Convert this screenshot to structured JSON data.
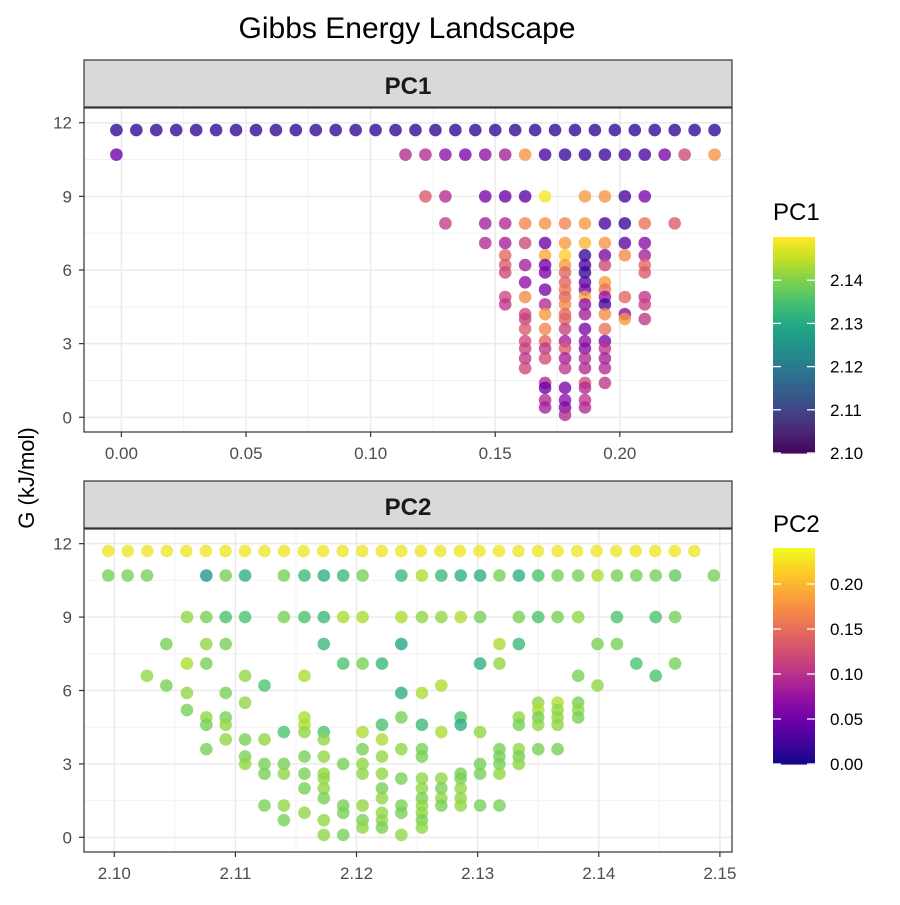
{
  "title": "Gibbs Energy Landscape",
  "ylabel": "G (kJ/mol)",
  "chart_data": [
    {
      "type": "scatter",
      "panel_label": "PC1",
      "xlim": [
        -0.015,
        0.245
      ],
      "ylim": [
        -0.6,
        12.6
      ],
      "x_ticks": [
        0.0,
        0.05,
        0.1,
        0.15,
        0.2
      ],
      "x_tick_labels": [
        "0.00",
        "0.05",
        "0.10",
        "0.15",
        "0.20"
      ],
      "y_ticks": [
        0,
        3,
        6,
        9,
        12
      ],
      "y_tick_labels": [
        "0",
        "3",
        "6",
        "9",
        "12"
      ],
      "grid": true,
      "color_scale": "plasma",
      "colorbar": {
        "title": "PC1",
        "range": [
          2.1,
          2.15
        ],
        "ticks": [
          2.1,
          2.11,
          2.12,
          2.13,
          2.14
        ],
        "tick_labels": [
          "2.10",
          "2.11",
          "2.12",
          "2.13",
          "2.14"
        ]
      },
      "rows": [
        {
          "y": 11.7,
          "x_start": -0.002,
          "x_end": 0.238,
          "step": 0.008,
          "c": 2.103
        },
        {
          "y": 10.7,
          "x": [
            -0.002,
            0.114,
            0.122,
            0.13,
            0.138,
            0.146,
            0.154,
            0.162,
            0.17,
            0.178,
            0.186,
            0.194,
            0.202,
            0.21,
            0.218,
            0.226,
            0.238
          ],
          "c": [
            2.11,
            2.12,
            2.12,
            2.115,
            2.112,
            2.115,
            2.118,
            2.137,
            2.106,
            2.104,
            2.104,
            2.104,
            2.106,
            2.106,
            2.112,
            2.125,
            2.137
          ]
        },
        {
          "y": 9.0,
          "x": [
            0.122,
            0.13,
            0.146,
            0.154,
            0.162,
            0.17,
            0.186,
            0.194,
            0.202,
            0.21
          ],
          "c": [
            2.128,
            2.12,
            2.112,
            2.11,
            2.108,
            2.148,
            2.138,
            2.137,
            2.106,
            2.112
          ]
        },
        {
          "y": 7.9,
          "x": [
            0.13,
            0.146,
            0.154,
            0.162,
            0.17,
            0.178,
            0.186,
            0.194,
            0.202,
            0.21,
            0.222
          ],
          "c": [
            2.123,
            2.118,
            2.12,
            2.135,
            2.137,
            2.135,
            2.138,
            2.106,
            2.104,
            2.132,
            2.128
          ]
        },
        {
          "y": 7.1,
          "x": [
            0.146,
            0.154,
            0.162,
            0.17,
            0.178,
            0.186,
            0.194,
            0.202,
            0.21
          ],
          "c": [
            2.12,
            2.118,
            2.125,
            2.11,
            2.138,
            2.142,
            2.137,
            2.108,
            2.114
          ]
        },
        {
          "y": 6.6,
          "x": [
            0.154,
            0.17,
            0.178,
            0.186,
            0.194,
            0.202,
            0.21
          ],
          "c": [
            2.13,
            2.14,
            2.145,
            2.104,
            2.112,
            2.136,
            2.118
          ]
        },
        {
          "y": 6.2,
          "x": [
            0.154,
            0.162,
            0.17,
            0.178,
            0.186,
            0.194,
            0.21
          ],
          "c": [
            2.128,
            2.118,
            2.11,
            2.138,
            2.106,
            2.125,
            2.13
          ]
        },
        {
          "y": 5.9,
          "x": [
            0.154,
            0.17,
            0.178,
            0.186,
            0.21
          ],
          "c": [
            2.125,
            2.112,
            2.13,
            2.104,
            2.128
          ]
        },
        {
          "y": 5.5,
          "x": [
            0.162,
            0.178,
            0.186,
            0.194
          ],
          "c": [
            2.115,
            2.13,
            2.108,
            2.138
          ]
        },
        {
          "y": 5.2,
          "x": [
            0.17,
            0.178,
            0.186,
            0.194
          ],
          "c": [
            2.112,
            2.133,
            2.112,
            2.132
          ]
        },
        {
          "y": 4.9,
          "x": [
            0.154,
            0.162,
            0.178,
            0.186,
            0.194,
            0.202,
            0.21
          ],
          "c": [
            2.125,
            2.136,
            2.13,
            2.14,
            2.116,
            2.13,
            2.122
          ]
        },
        {
          "y": 4.6,
          "x": [
            0.154,
            0.17,
            0.178,
            0.186,
            0.194,
            0.21
          ],
          "c": [
            2.122,
            2.12,
            2.135,
            2.115,
            2.105,
            2.124
          ]
        },
        {
          "y": 4.2,
          "x": [
            0.162,
            0.17,
            0.178,
            0.186,
            0.194,
            0.202
          ],
          "c": [
            2.125,
            2.138,
            2.13,
            2.118,
            2.136,
            2.114
          ]
        },
        {
          "y": 4.0,
          "x": [
            0.162,
            0.178,
            0.202,
            0.21
          ],
          "c": [
            2.124,
            2.13,
            2.138,
            2.122
          ]
        },
        {
          "y": 3.6,
          "x": [
            0.162,
            0.17,
            0.178,
            0.186,
            0.194
          ],
          "c": [
            2.128,
            2.135,
            2.124,
            2.112,
            2.132
          ]
        },
        {
          "y": 3.1,
          "x": [
            0.162,
            0.17,
            0.178,
            0.186,
            0.194
          ],
          "c": [
            2.125,
            2.13,
            2.118,
            2.115,
            2.112
          ]
        },
        {
          "y": 2.8,
          "x": [
            0.162,
            0.17,
            0.178,
            0.186,
            0.194
          ],
          "c": [
            2.124,
            2.122,
            2.128,
            2.114,
            2.122
          ]
        },
        {
          "y": 2.4,
          "x": [
            0.162,
            0.17,
            0.178,
            0.186,
            0.194
          ],
          "c": [
            2.122,
            2.126,
            2.118,
            2.12,
            2.118
          ]
        },
        {
          "y": 2.0,
          "x": [
            0.162,
            0.178,
            0.186,
            0.194
          ],
          "c": [
            2.125,
            2.122,
            2.12,
            2.12
          ]
        },
        {
          "y": 1.4,
          "x": [
            0.17,
            0.186,
            0.194
          ],
          "c": [
            2.12,
            2.126,
            2.122
          ]
        },
        {
          "y": 1.2,
          "x": [
            0.17,
            0.178,
            0.186
          ],
          "c": [
            2.11,
            2.112,
            2.12
          ]
        },
        {
          "y": 0.7,
          "x": [
            0.17,
            0.178,
            0.186
          ],
          "c": [
            2.12,
            2.115,
            2.122
          ]
        },
        {
          "y": 0.4,
          "x": [
            0.17,
            0.178,
            0.186
          ],
          "c": [
            2.118,
            2.112,
            2.12
          ]
        },
        {
          "y": 0.1,
          "x": [
            0.178
          ],
          "c": [
            2.12
          ]
        }
      ]
    },
    {
      "type": "scatter",
      "panel_label": "PC2",
      "xlim": [
        2.0975,
        2.151
      ],
      "ylim": [
        -0.6,
        12.6
      ],
      "x_ticks": [
        2.1,
        2.11,
        2.12,
        2.13,
        2.14,
        2.15
      ],
      "x_tick_labels": [
        "2.10",
        "2.11",
        "2.12",
        "2.13",
        "2.14",
        "2.15"
      ],
      "y_ticks": [
        0,
        3,
        6,
        9,
        12
      ],
      "y_tick_labels": [
        "0",
        "3",
        "6",
        "9",
        "12"
      ],
      "grid": true,
      "color_scale": "viridis",
      "colorbar": {
        "title": "PC2",
        "range": [
          0.0,
          0.24
        ],
        "ticks": [
          0.0,
          0.05,
          0.1,
          0.15,
          0.2
        ],
        "tick_labels": [
          "0.00",
          "0.05",
          "0.10",
          "0.15",
          "0.20"
        ]
      },
      "rows": [
        {
          "y": 11.7,
          "x_start": 2.0995,
          "x_end": 2.1495,
          "step": 0.001613,
          "c": 0.235
        },
        {
          "y": 10.7,
          "x": [
            2.0995,
            2.1011,
            2.1027,
            2.1076,
            2.1092,
            2.1108,
            2.114,
            2.1157,
            2.1173,
            2.1189,
            2.1205,
            2.1237,
            2.1254,
            2.127,
            2.1286,
            2.1302,
            2.1318,
            2.1334,
            2.135,
            2.1366,
            2.1383,
            2.1399,
            2.1415,
            2.1431,
            2.1447,
            2.1463,
            2.1495
          ],
          "c": [
            0.19,
            0.19,
            0.19,
            0.12,
            0.19,
            0.15,
            0.19,
            0.16,
            0.15,
            0.16,
            0.19,
            0.16,
            0.21,
            0.16,
            0.15,
            0.15,
            0.19,
            0.15,
            0.17,
            0.19,
            0.19,
            0.21,
            0.19,
            0.19,
            0.19,
            0.18,
            0.19
          ]
        },
        {
          "y": 9.0,
          "x": [
            2.106,
            2.1076,
            2.1092,
            2.1108,
            2.114,
            2.1157,
            2.1173,
            2.1189,
            2.1205,
            2.1237,
            2.1254,
            2.127,
            2.1286,
            2.1302,
            2.1334,
            2.135,
            2.1366,
            2.1383,
            2.1415,
            2.1447,
            2.1463
          ],
          "c": [
            0.2,
            0.19,
            0.17,
            0.17,
            0.19,
            0.17,
            0.16,
            0.21,
            0.21,
            0.21,
            0.2,
            0.2,
            0.21,
            0.19,
            0.19,
            0.17,
            0.19,
            0.2,
            0.17,
            0.17,
            0.19
          ]
        },
        {
          "y": 7.9,
          "x": [
            2.1043,
            2.1076,
            2.1092,
            2.1173,
            2.1237,
            2.1318,
            2.1334,
            2.1399,
            2.1415
          ],
          "c": [
            0.19,
            0.2,
            0.19,
            0.16,
            0.14,
            0.21,
            0.16,
            0.19,
            0.19
          ]
        },
        {
          "y": 7.1,
          "x": [
            2.106,
            2.1076,
            2.1189,
            2.1205,
            2.1221,
            2.1302,
            2.1318,
            2.1431,
            2.1463
          ],
          "c": [
            0.21,
            0.19,
            0.17,
            0.19,
            0.16,
            0.15,
            0.2,
            0.17,
            0.19
          ]
        },
        {
          "y": 6.6,
          "x": [
            2.1027,
            2.1108,
            2.1157,
            2.1383,
            2.1447
          ],
          "c": [
            0.2,
            0.2,
            0.21,
            0.19,
            0.17
          ]
        },
        {
          "y": 6.2,
          "x": [
            2.1043,
            2.1124,
            2.127,
            2.1399
          ],
          "c": [
            0.19,
            0.17,
            0.21,
            0.2
          ]
        },
        {
          "y": 5.9,
          "x": [
            2.106,
            2.1092,
            2.1237,
            2.1254
          ],
          "c": [
            0.2,
            0.19,
            0.15,
            0.21
          ]
        },
        {
          "y": 5.5,
          "x": [
            2.1108,
            2.135,
            2.1366,
            2.1383
          ],
          "c": [
            0.2,
            0.2,
            0.21,
            0.19
          ]
        },
        {
          "y": 5.2,
          "x": [
            2.106,
            2.135,
            2.1366,
            2.1383
          ],
          "c": [
            0.19,
            0.21,
            0.2,
            0.2
          ]
        },
        {
          "y": 4.9,
          "x": [
            2.1076,
            2.1092,
            2.1157,
            2.1237,
            2.1286,
            2.1334,
            2.135,
            2.1366,
            2.1383
          ],
          "c": [
            0.2,
            0.19,
            0.21,
            0.19,
            0.17,
            0.2,
            0.19,
            0.2,
            0.19
          ]
        },
        {
          "y": 4.6,
          "x": [
            2.1076,
            2.1092,
            2.1157,
            2.1221,
            2.1254,
            2.1286,
            2.1334,
            2.135,
            2.1366
          ],
          "c": [
            0.19,
            0.2,
            0.21,
            0.17,
            0.16,
            0.15,
            0.19,
            0.2,
            0.2
          ]
        },
        {
          "y": 4.3,
          "x": [
            2.114,
            2.1157,
            2.1173,
            2.1205,
            2.127,
            2.1302
          ],
          "c": [
            0.17,
            0.2,
            0.17,
            0.21,
            0.21,
            0.2
          ]
        },
        {
          "y": 4.0,
          "x": [
            2.1092,
            2.1108,
            2.1124,
            2.1173,
            2.1221
          ],
          "c": [
            0.2,
            0.19,
            0.2,
            0.2,
            0.21
          ]
        },
        {
          "y": 3.6,
          "x": [
            2.1076,
            2.1205,
            2.1237,
            2.1254,
            2.1318,
            2.1334,
            2.135,
            2.1366
          ],
          "c": [
            0.19,
            0.19,
            0.2,
            0.19,
            0.19,
            0.2,
            0.19,
            0.19
          ]
        },
        {
          "y": 3.3,
          "x": [
            2.1108,
            2.1157,
            2.1173,
            2.1221,
            2.1254,
            2.1318,
            2.1334
          ],
          "c": [
            0.19,
            0.19,
            0.2,
            0.2,
            0.19,
            0.19,
            0.19
          ]
        },
        {
          "y": 3.0,
          "x": [
            2.1108,
            2.1124,
            2.114,
            2.1189,
            2.1205,
            2.1302,
            2.1318,
            2.1334
          ],
          "c": [
            0.2,
            0.19,
            0.19,
            0.19,
            0.2,
            0.19,
            0.19,
            0.2
          ]
        },
        {
          "y": 2.6,
          "x": [
            2.1124,
            2.114,
            2.1157,
            2.1173,
            2.1205,
            2.1221,
            2.1286,
            2.1302,
            2.1318
          ],
          "c": [
            0.19,
            0.2,
            0.19,
            0.2,
            0.2,
            0.2,
            0.19,
            0.19,
            0.2
          ]
        },
        {
          "y": 2.4,
          "x": [
            2.1173,
            2.1237,
            2.1254,
            2.127,
            2.1286
          ],
          "c": [
            0.2,
            0.19,
            0.2,
            0.2,
            0.19
          ]
        },
        {
          "y": 2.0,
          "x": [
            2.1157,
            2.1173,
            2.1221,
            2.1254,
            2.127,
            2.1286
          ],
          "c": [
            0.19,
            0.2,
            0.19,
            0.2,
            0.19,
            0.2
          ]
        },
        {
          "y": 1.6,
          "x": [
            2.1173,
            2.1221,
            2.1254,
            2.127,
            2.1286
          ],
          "c": [
            0.19,
            0.2,
            0.19,
            0.2,
            0.2
          ]
        },
        {
          "y": 1.3,
          "x": [
            2.1124,
            2.114,
            2.1189,
            2.1205,
            2.1237,
            2.1254,
            2.127,
            2.1286,
            2.1302,
            2.1318
          ],
          "c": [
            0.19,
            0.2,
            0.19,
            0.2,
            0.19,
            0.2,
            0.19,
            0.2,
            0.19,
            0.19
          ]
        },
        {
          "y": 1.0,
          "x": [
            2.1157,
            2.1189,
            2.1221,
            2.1237,
            2.1254
          ],
          "c": [
            0.2,
            0.19,
            0.2,
            0.19,
            0.2
          ]
        },
        {
          "y": 0.7,
          "x": [
            2.114,
            2.1173,
            2.1205,
            2.1221,
            2.1254
          ],
          "c": [
            0.19,
            0.2,
            0.19,
            0.2,
            0.19
          ]
        },
        {
          "y": 0.4,
          "x": [
            2.1205,
            2.1221,
            2.1254
          ],
          "c": [
            0.2,
            0.19,
            0.2
          ]
        },
        {
          "y": 0.1,
          "x": [
            2.1173,
            2.1189,
            2.1237
          ],
          "c": [
            0.2,
            0.19,
            0.2
          ]
        }
      ]
    }
  ]
}
